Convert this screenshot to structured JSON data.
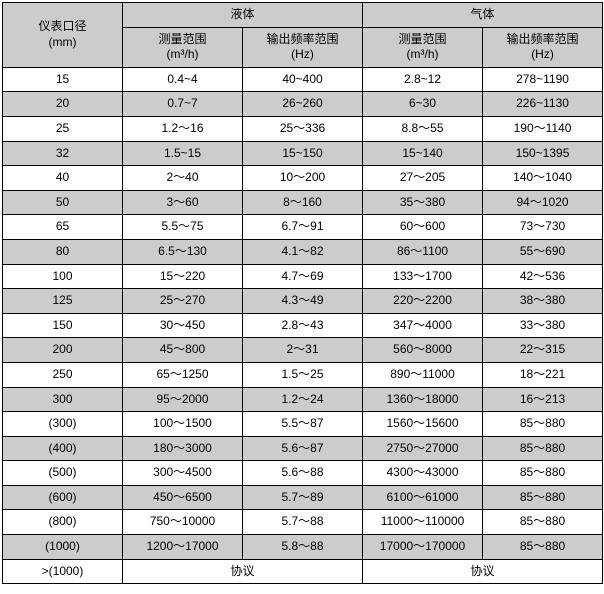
{
  "header": {
    "diameter_label_line1": "仪表口径",
    "diameter_label_line2": "(mm)",
    "liquid_label": "液体",
    "gas_label": "气体",
    "range_label_line1": "测量范围",
    "range_label_line2": "(m³/h)",
    "freq_label_line1": "输出频率范围",
    "freq_label_line2": "(Hz)"
  },
  "rows": [
    {
      "dia": "15",
      "lr": "0.4~4",
      "lf": "40~400",
      "gr": "2.8~12",
      "gf": "278~1190",
      "shade": false
    },
    {
      "dia": "20",
      "lr": "0.7~7",
      "lf": "26~260",
      "gr": "6~30",
      "gf": "226~1130",
      "shade": true
    },
    {
      "dia": "25",
      "lr": "1.2～16",
      "lf": "25～336",
      "gr": "8.8～55",
      "gf": "190～1140",
      "shade": false
    },
    {
      "dia": "32",
      "lr": "1.5~15",
      "lf": "15~150",
      "gr": "15~140",
      "gf": "150~1395",
      "shade": true
    },
    {
      "dia": "40",
      "lr": "2～40",
      "lf": "10～200",
      "gr": "27～205",
      "gf": "140～1040",
      "shade": false
    },
    {
      "dia": "50",
      "lr": "3～60",
      "lf": "8～160",
      "gr": "35～380",
      "gf": "94～1020",
      "shade": true
    },
    {
      "dia": "65",
      "lr": "5.5～75",
      "lf": "6.7～91",
      "gr": "60～600",
      "gf": "73～730",
      "shade": false
    },
    {
      "dia": "80",
      "lr": "6.5～130",
      "lf": "4.1～82",
      "gr": "86～1100",
      "gf": "55～690",
      "shade": true
    },
    {
      "dia": "100",
      "lr": "15～220",
      "lf": "4.7～69",
      "gr": "133～1700",
      "gf": "42～536",
      "shade": false
    },
    {
      "dia": "125",
      "lr": "25～270",
      "lf": "4.3～49",
      "gr": "220～2200",
      "gf": "38～380",
      "shade": true
    },
    {
      "dia": "150",
      "lr": "30～450",
      "lf": "2.8～43",
      "gr": "347～4000",
      "gf": "33～380",
      "shade": false
    },
    {
      "dia": "200",
      "lr": "45～800",
      "lf": "2～31",
      "gr": "560～8000",
      "gf": "22～315",
      "shade": true
    },
    {
      "dia": "250",
      "lr": "65～1250",
      "lf": "1.5～25",
      "gr": "890～11000",
      "gf": "18～221",
      "shade": false
    },
    {
      "dia": "300",
      "lr": "95～2000",
      "lf": "1.2～24",
      "gr": "1360～18000",
      "gf": "16～213",
      "shade": true
    },
    {
      "dia": "(300)",
      "lr": "100～1500",
      "lf": "5.5～87",
      "gr": "1560～15600",
      "gf": "85～880",
      "shade": false
    },
    {
      "dia": "(400)",
      "lr": "180～3000",
      "lf": "5.6～87",
      "gr": "2750～27000",
      "gf": "85～880",
      "shade": true
    },
    {
      "dia": "(500)",
      "lr": "300～4500",
      "lf": "5.6～88",
      "gr": "4300～43000",
      "gf": "85～880",
      "shade": false
    },
    {
      "dia": "(600)",
      "lr": "450～6500",
      "lf": "5.7～89",
      "gr": "6100～61000",
      "gf": "85～880",
      "shade": true
    },
    {
      "dia": "(800)",
      "lr": "750～10000",
      "lf": "5.7～88",
      "gr": "11000～110000",
      "gf": "85～880",
      "shade": false
    },
    {
      "dia": "(1000)",
      "lr": "1200～17000",
      "lf": "5.8～88",
      "gr": "17000～170000",
      "gf": "85～880",
      "shade": true
    },
    {
      "dia": ">(1000)",
      "lr": "协议",
      "lf": "",
      "gr": "协议",
      "gf": "",
      "shade": false,
      "merge": true
    }
  ]
}
